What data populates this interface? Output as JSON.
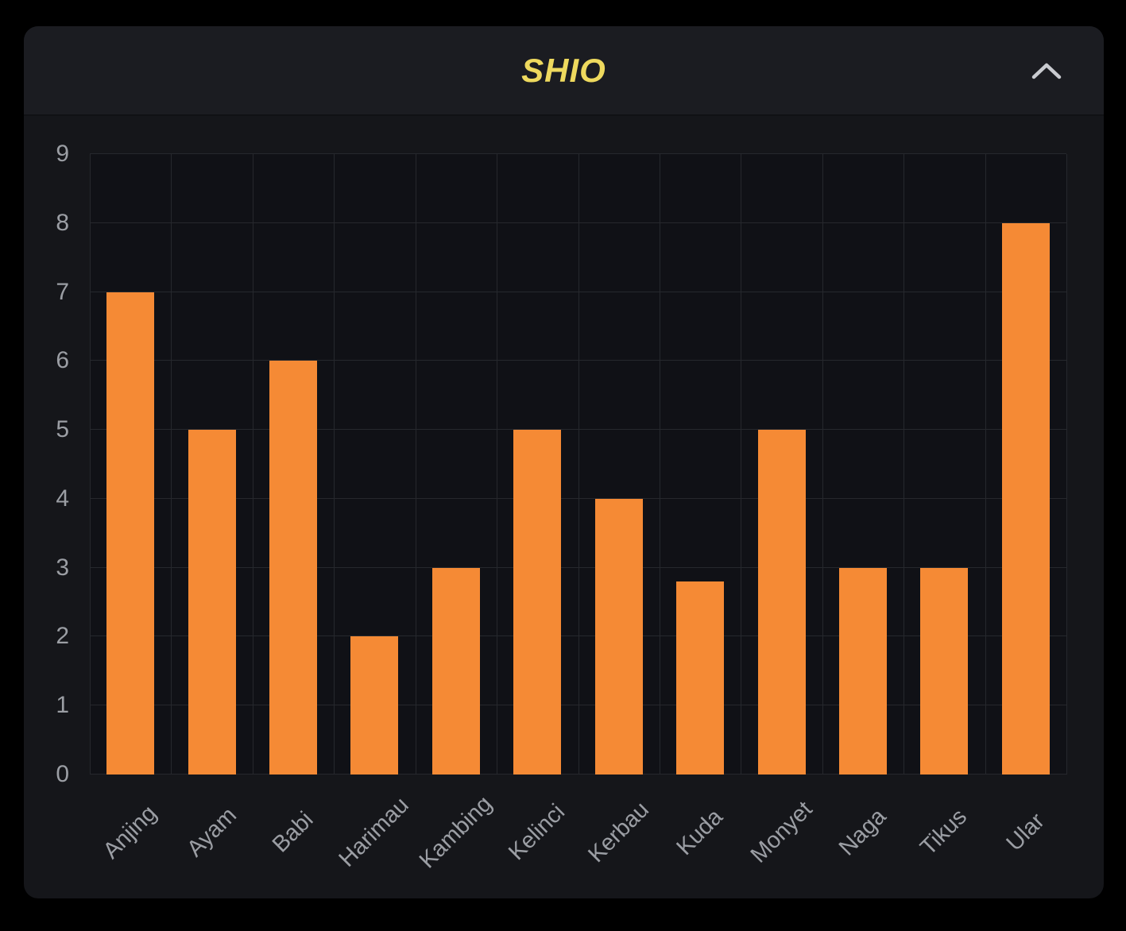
{
  "header": {
    "title": "SHIO"
  },
  "colors": {
    "page_bg": "#000000",
    "card_bg": "#15161a",
    "header_bg": "#1b1c21",
    "plot_bg": "#101116",
    "gridline": "#26282d",
    "bar": "#f58a35",
    "axis_label": "#9b9ea4",
    "title": "#eed95e",
    "chevron": "#c9cbd0"
  },
  "chart_data": {
    "type": "bar",
    "title": "SHIO",
    "categories": [
      "Anjing",
      "Ayam",
      "Babi",
      "Harimau",
      "Kambing",
      "Kelinci",
      "Kerbau",
      "Kuda",
      "Monyet",
      "Naga",
      "Tikus",
      "Ular"
    ],
    "values": [
      7,
      5,
      6,
      2,
      3,
      5,
      4,
      2.8,
      5,
      3,
      3,
      8
    ],
    "xlabel": "",
    "ylabel": "",
    "ylim": [
      0,
      9
    ],
    "yticks": [
      0,
      1,
      2,
      3,
      4,
      5,
      6,
      7,
      8,
      9
    ],
    "grid": true,
    "legend": "none",
    "bar_color": "#f58a35"
  }
}
